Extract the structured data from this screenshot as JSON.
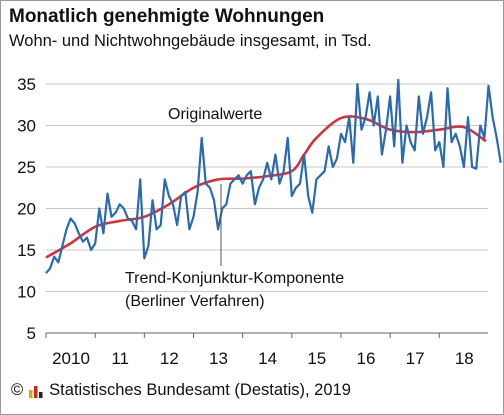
{
  "title": "Monatlich genehmigte Wohnungen",
  "subtitle": "Wohn- und Nichtwohngebäude insgesamt, in Tsd.",
  "source": {
    "copyright": "©",
    "text": "Statistisches Bundesamt (Destatis), 2019"
  },
  "colors": {
    "original": "#2a6ab0",
    "trend": "#d0343e",
    "grid": "#c8c8c8",
    "logo": [
      "#e0a31a",
      "#c8281e",
      "#222222"
    ]
  },
  "chart_data": {
    "type": "line",
    "title": "Monatlich genehmigte Wohnungen",
    "subtitle": "Wohn- und Nichtwohngebäude insgesamt, in Tsd.",
    "xlabel": "",
    "ylabel": "",
    "ylim": [
      5,
      35
    ],
    "yticks": [
      5,
      10,
      15,
      20,
      25,
      30,
      35
    ],
    "xlim": [
      2010,
      2018.95
    ],
    "xtick_labels": [
      "2010",
      "11",
      "12",
      "13",
      "14",
      "15",
      "16",
      "17",
      "18"
    ],
    "xtick_values": [
      2010,
      2011,
      2012,
      2013,
      2014,
      2015,
      2016,
      2017,
      2018
    ],
    "grid": "horizontal",
    "annotations": [
      {
        "text": "Originalwerte"
      },
      {
        "text": "Trend-Konjunktur-Komponente"
      },
      {
        "text": "(Berliner Verfahren)"
      }
    ],
    "series": [
      {
        "name": "Originalwerte",
        "x_start": 2010,
        "x_step": 0.0833333,
        "values": [
          12.2,
          12.8,
          14.2,
          13.5,
          15.5,
          17.5,
          18.8,
          18.2,
          17.0,
          16.0,
          16.5,
          15.0,
          15.8,
          20.0,
          17.0,
          21.8,
          19.0,
          19.5,
          20.5,
          20.0,
          18.8,
          18.5,
          17.5,
          23.5,
          14.0,
          15.5,
          21.0,
          17.5,
          18.0,
          23.5,
          21.5,
          20.5,
          18.0,
          21.5,
          22.0,
          17.5,
          19.0,
          22.0,
          28.5,
          23.0,
          22.5,
          21.0,
          17.5,
          20.0,
          20.5,
          23.0,
          23.5,
          24.0,
          23.0,
          24.0,
          24.5,
          20.5,
          22.5,
          23.5,
          25.5,
          23.5,
          26.5,
          23.0,
          24.5,
          28.5,
          21.5,
          22.5,
          23.0,
          26.5,
          21.5,
          19.5,
          23.5,
          24.0,
          24.5,
          27.5,
          25.0,
          26.0,
          29.0,
          28.0,
          31.0,
          25.5,
          35.0,
          29.5,
          31.0,
          34.0,
          30.0,
          33.5,
          26.5,
          29.5,
          33.5,
          27.5,
          35.5,
          25.5,
          30.0,
          28.0,
          27.0,
          33.5,
          29.0,
          31.0,
          34.0,
          27.0,
          28.0,
          25.0,
          34.5,
          28.0,
          29.0,
          27.5,
          25.0,
          31.0,
          25.0,
          24.8,
          30.0,
          28.5,
          34.8,
          31.0,
          28.5,
          25.5
        ]
      },
      {
        "name": "Trend-Konjunktur-Komponente",
        "x": [
          2010,
          2010.5,
          2011,
          2011.5,
          2012,
          2012.5,
          2013,
          2013.5,
          2014,
          2014.5,
          2015,
          2015.25,
          2015.5,
          2016,
          2016.5,
          2017,
          2017.5,
          2018,
          2018.5,
          2018.95
        ],
        "values": [
          14.1,
          15.8,
          17.8,
          18.5,
          19.0,
          20.5,
          22.5,
          23.5,
          23.6,
          23.9,
          24.5,
          26.5,
          28.5,
          30.9,
          30.8,
          29.5,
          29.2,
          29.5,
          29.8,
          28.1
        ]
      }
    ]
  }
}
